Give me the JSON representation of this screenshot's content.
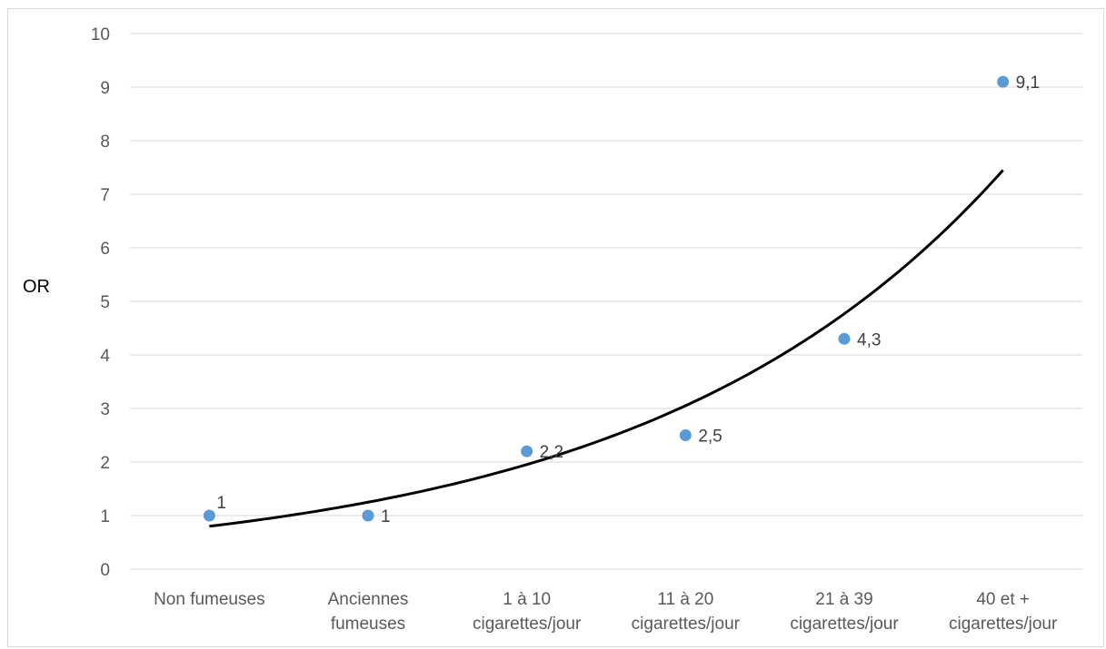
{
  "chart_data": {
    "type": "scatter",
    "title": "",
    "xlabel": "",
    "ylabel": "OR",
    "ylim": [
      0,
      10
    ],
    "y_ticks": [
      "0",
      "1",
      "2",
      "3",
      "4",
      "5",
      "6",
      "7",
      "8",
      "9",
      "10"
    ],
    "grid": true,
    "categories": [
      [
        "Non fumeuses"
      ],
      [
        "Anciennes",
        "fumeuses"
      ],
      [
        "1 à 10",
        "cigarettes/jour"
      ],
      [
        "11 à 20",
        "cigarettes/jour"
      ],
      [
        "21 à 39",
        "cigarettes/jour"
      ],
      [
        "40 et +",
        "cigarettes/jour"
      ]
    ],
    "series": [
      {
        "values": [
          1,
          1,
          2.2,
          2.5,
          4.3,
          9.1
        ],
        "data_labels": [
          "1",
          "1",
          "2,2",
          "2,5",
          "4,3",
          "9,1"
        ],
        "color": "#5b9bd5"
      }
    ],
    "trendline": {
      "type": "exponential",
      "color": "#000000",
      "values": [
        0.8,
        1.24,
        1.95,
        3.05,
        4.78,
        7.45
      ]
    }
  }
}
